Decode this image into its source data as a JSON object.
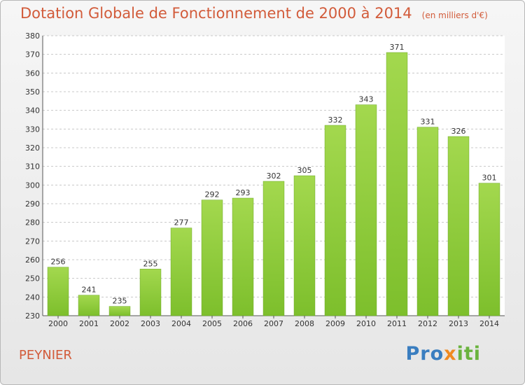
{
  "header": {
    "title": "Dotation Globale de Fonctionnement de 2000 à 2014",
    "unit": "(en milliers d'€)"
  },
  "footer": {
    "commune": "PEYNIER",
    "brand": [
      "Pro",
      "x",
      "iti"
    ]
  },
  "colors": {
    "bar": "#7dbf2c",
    "bar_light": "#a3d84e",
    "title": "#d25b3a",
    "grid": "#c8c8c8"
  },
  "chart_data": {
    "type": "bar",
    "title": "Dotation Globale de Fonctionnement de 2000 à 2014",
    "subtitle": "(en milliers d'€)",
    "categories": [
      "2000",
      "2001",
      "2002",
      "2003",
      "2004",
      "2005",
      "2006",
      "2007",
      "2008",
      "2009",
      "2010",
      "2011",
      "2012",
      "2013",
      "2014"
    ],
    "values": [
      256,
      241,
      235,
      255,
      277,
      292,
      293,
      302,
      305,
      332,
      343,
      371,
      331,
      326,
      301
    ],
    "ylim": [
      230,
      380
    ],
    "yticks": [
      230,
      240,
      250,
      260,
      270,
      280,
      290,
      300,
      310,
      320,
      330,
      340,
      350,
      360,
      370,
      380
    ],
    "grid": true,
    "xlabel": "",
    "ylabel": ""
  }
}
